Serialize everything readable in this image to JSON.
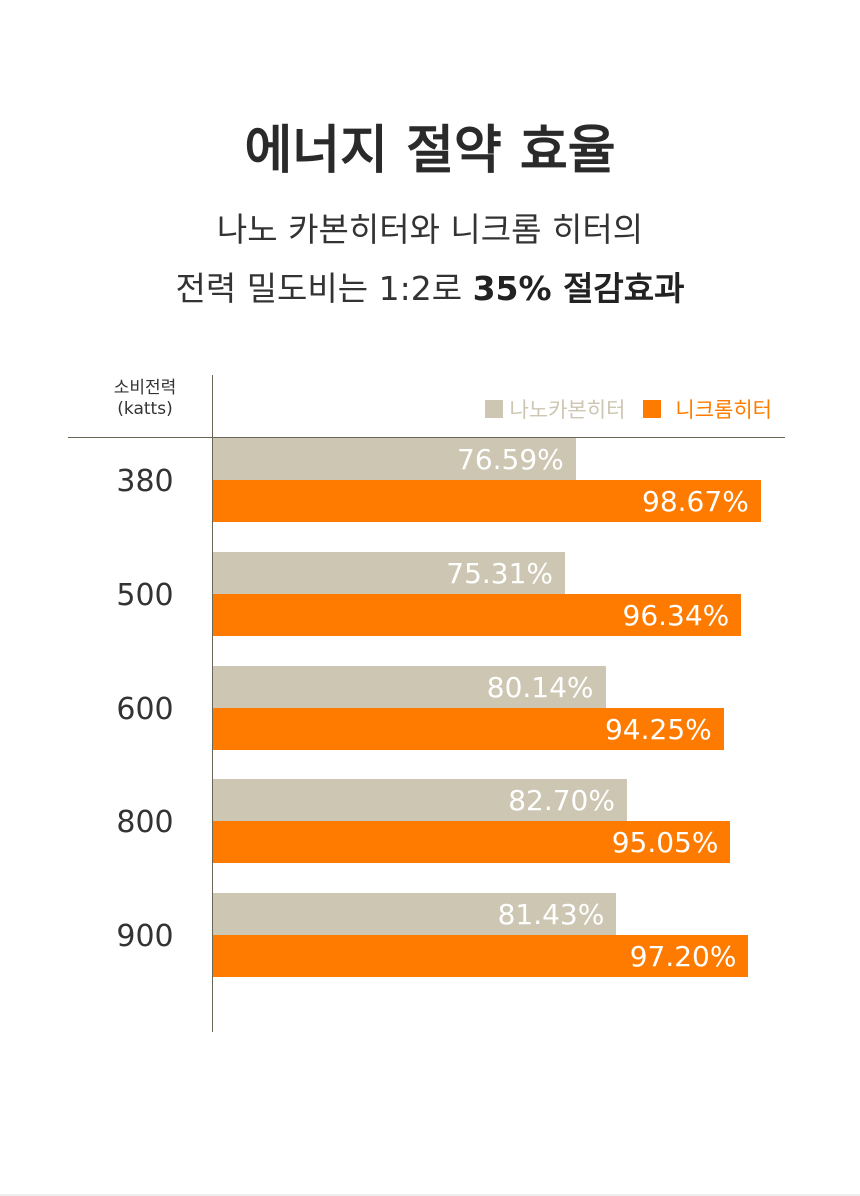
{
  "title": "에너지 절약 효율",
  "subtitle_line1": "나노 카본히터와 니크롬 히터의",
  "subtitle_line2_normal": "전력 밀도비는 1:2로 ",
  "subtitle_line2_bold": "35% 절감효과",
  "chart_data": {
    "type": "bar",
    "orientation": "horizontal",
    "title": "에너지 절약 효율",
    "ylabel_line1": "소비전력",
    "ylabel_line2": "(katts)",
    "categories": [
      "380",
      "500",
      "600",
      "800",
      "900"
    ],
    "series": [
      {
        "name": "나노카본히터",
        "color": "#ccc6b2",
        "values": [
          76.59,
          75.31,
          80.14,
          82.7,
          81.43
        ],
        "labels": [
          "76.59%",
          "75.31%",
          "80.14%",
          "82.70%",
          "81.43%"
        ]
      },
      {
        "name": "니크롬히터",
        "color": "#ff7b00",
        "values": [
          98.67,
          96.34,
          94.25,
          95.05,
          97.2
        ],
        "labels": [
          "98.67%",
          "96.34%",
          "94.25%",
          "95.05%",
          "97.20%"
        ]
      }
    ],
    "legend_position": "top-right",
    "grid": false
  }
}
